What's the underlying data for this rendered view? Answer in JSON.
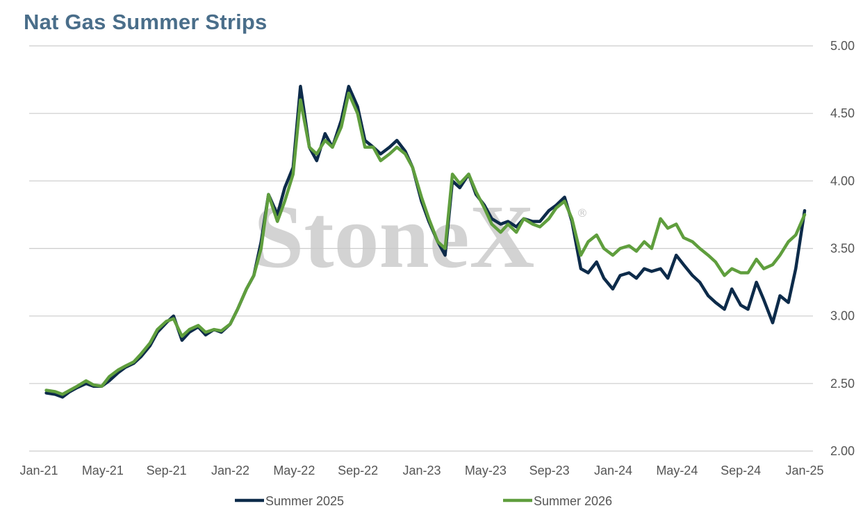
{
  "header": {
    "title": "Nat Gas Summer Strips"
  },
  "watermark": {
    "text": "StoneX",
    "mark": "®"
  },
  "colors": {
    "series1": "#0d2b4a",
    "series2": "#5f9e3d",
    "grid": "#cccccc",
    "title": "#4a6e8a"
  },
  "chart_data": {
    "type": "line",
    "title": "Nat Gas Summer Strips",
    "xlabel": "",
    "ylabel": "",
    "ylim": [
      2.0,
      5.0
    ],
    "yticks": [
      "2.00",
      "2.50",
      "3.00",
      "3.50",
      "4.00",
      "4.50",
      "5.00"
    ],
    "y_axis_side": "right",
    "xlim": [
      "2021-01",
      "2025-01"
    ],
    "xticks": [
      "Jan-21",
      "May-21",
      "Sep-21",
      "Jan-22",
      "May-22",
      "Sep-22",
      "Jan-23",
      "May-23",
      "Sep-23",
      "Jan-24",
      "May-24",
      "Sep-24",
      "Jan-25"
    ],
    "grid": "horizontal",
    "legend_position": "bottom",
    "x": [
      "2021-01-15",
      "2021-02-01",
      "2021-02-15",
      "2021-03-01",
      "2021-03-15",
      "2021-04-01",
      "2021-04-15",
      "2021-05-01",
      "2021-05-15",
      "2021-06-01",
      "2021-06-15",
      "2021-07-01",
      "2021-07-15",
      "2021-08-01",
      "2021-08-15",
      "2021-09-01",
      "2021-09-15",
      "2021-10-01",
      "2021-10-15",
      "2021-11-01",
      "2021-11-15",
      "2021-12-01",
      "2021-12-15",
      "2022-01-01",
      "2022-01-15",
      "2022-02-01",
      "2022-02-15",
      "2022-03-01",
      "2022-03-15",
      "2022-04-01",
      "2022-04-15",
      "2022-05-01",
      "2022-05-15",
      "2022-06-01",
      "2022-06-15",
      "2022-07-01",
      "2022-07-15",
      "2022-08-01",
      "2022-08-15",
      "2022-09-01",
      "2022-09-15",
      "2022-10-01",
      "2022-10-15",
      "2022-11-01",
      "2022-11-15",
      "2022-12-01",
      "2022-12-15",
      "2023-01-01",
      "2023-01-15",
      "2023-02-01",
      "2023-02-15",
      "2023-03-01",
      "2023-03-15",
      "2023-04-01",
      "2023-04-15",
      "2023-05-01",
      "2023-05-15",
      "2023-06-01",
      "2023-06-15",
      "2023-07-01",
      "2023-07-15",
      "2023-08-01",
      "2023-08-15",
      "2023-09-01",
      "2023-09-15",
      "2023-10-01",
      "2023-10-15",
      "2023-11-01",
      "2023-11-15",
      "2023-12-01",
      "2023-12-15",
      "2024-01-01",
      "2024-01-15",
      "2024-02-01",
      "2024-02-15",
      "2024-03-01",
      "2024-03-15",
      "2024-04-01",
      "2024-04-15",
      "2024-05-01",
      "2024-05-15",
      "2024-06-01",
      "2024-06-15",
      "2024-07-01",
      "2024-07-15",
      "2024-08-01",
      "2024-08-15",
      "2024-09-01",
      "2024-09-15",
      "2024-10-01",
      "2024-10-15",
      "2024-11-01",
      "2024-11-15",
      "2024-12-01",
      "2024-12-15",
      "2025-01-01"
    ],
    "series": [
      {
        "name": "Summer 2025",
        "values": [
          2.43,
          2.42,
          2.4,
          2.44,
          2.47,
          2.5,
          2.48,
          2.48,
          2.52,
          2.58,
          2.62,
          2.65,
          2.7,
          2.78,
          2.88,
          2.95,
          3.0,
          2.82,
          2.88,
          2.92,
          2.86,
          2.9,
          2.88,
          2.94,
          3.05,
          3.2,
          3.3,
          3.55,
          3.9,
          3.75,
          3.95,
          4.1,
          4.7,
          4.25,
          4.15,
          4.35,
          4.25,
          4.45,
          4.7,
          4.55,
          4.3,
          4.25,
          4.2,
          4.25,
          4.3,
          4.22,
          4.1,
          3.85,
          3.7,
          3.55,
          3.45,
          4.0,
          3.95,
          4.05,
          3.9,
          3.82,
          3.72,
          3.68,
          3.7,
          3.66,
          3.72,
          3.7,
          3.7,
          3.78,
          3.82,
          3.88,
          3.7,
          3.35,
          3.32,
          3.4,
          3.28,
          3.2,
          3.3,
          3.32,
          3.28,
          3.35,
          3.33,
          3.35,
          3.28,
          3.45,
          3.38,
          3.3,
          3.25,
          3.15,
          3.1,
          3.05,
          3.2,
          3.08,
          3.05,
          3.25,
          3.12,
          2.95,
          3.15,
          3.1,
          3.35,
          3.78
        ]
      },
      {
        "name": "Summer 2026",
        "values": [
          2.45,
          2.44,
          2.42,
          2.45,
          2.48,
          2.52,
          2.49,
          2.48,
          2.55,
          2.6,
          2.63,
          2.66,
          2.72,
          2.8,
          2.9,
          2.96,
          2.98,
          2.85,
          2.9,
          2.93,
          2.88,
          2.9,
          2.89,
          2.94,
          3.05,
          3.2,
          3.3,
          3.5,
          3.9,
          3.7,
          3.85,
          4.05,
          4.6,
          4.25,
          4.2,
          4.3,
          4.25,
          4.4,
          4.65,
          4.5,
          4.25,
          4.25,
          4.15,
          4.2,
          4.25,
          4.2,
          4.1,
          3.88,
          3.72,
          3.55,
          3.5,
          4.05,
          3.98,
          4.05,
          3.92,
          3.8,
          3.68,
          3.62,
          3.68,
          3.62,
          3.72,
          3.68,
          3.66,
          3.72,
          3.8,
          3.85,
          3.72,
          3.45,
          3.55,
          3.6,
          3.5,
          3.45,
          3.5,
          3.52,
          3.48,
          3.55,
          3.5,
          3.72,
          3.65,
          3.68,
          3.58,
          3.55,
          3.5,
          3.45,
          3.4,
          3.3,
          3.35,
          3.32,
          3.32,
          3.42,
          3.35,
          3.38,
          3.45,
          3.55,
          3.6,
          3.75
        ]
      }
    ]
  }
}
